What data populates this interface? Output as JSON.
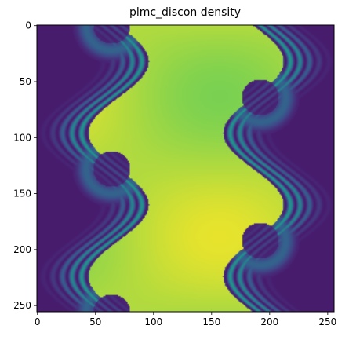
{
  "chart_data": {
    "type": "heatmap",
    "title": "plmc_discon density",
    "xlabel": "",
    "ylabel": "",
    "xlim": [
      0,
      255
    ],
    "ylim": [
      255,
      0
    ],
    "x_ticks": [
      0,
      50,
      100,
      150,
      200,
      250
    ],
    "y_ticks": [
      0,
      50,
      100,
      150,
      200,
      250
    ],
    "grid": false,
    "colormap": "viridis",
    "value_range": [
      0,
      1
    ],
    "field": {
      "description_of_values": "two-fluid density field: high (yellow) central band between two mirrored wavy interfaces with Kelvin-Helmholtz rollups",
      "low_value": 0.0,
      "high_value": 1.0,
      "left_interface": {
        "center_x": 64,
        "amplitude_x": 26,
        "period_y": 128,
        "vortex_centers": [
          [
            64,
            0
          ],
          [
            64,
            128
          ],
          [
            64,
            256
          ]
        ]
      },
      "right_interface": {
        "center_x": 192,
        "amplitude_x": 26,
        "period_y": 128,
        "vortex_centers": [
          [
            192,
            64
          ],
          [
            192,
            192
          ]
        ]
      }
    }
  }
}
